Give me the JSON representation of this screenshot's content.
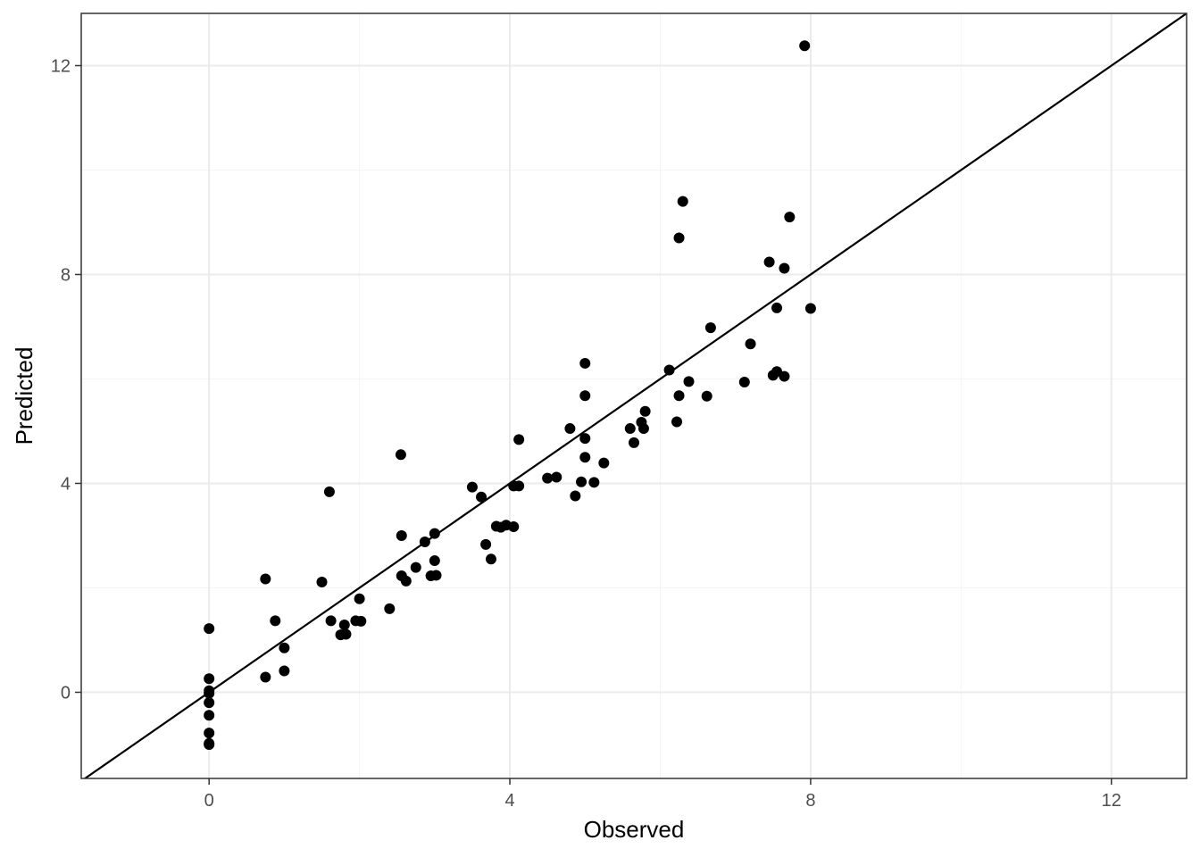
{
  "chart_data": {
    "type": "scatter",
    "xlabel": "Observed",
    "ylabel": "Predicted",
    "xlim": [
      -1.7,
      13.0
    ],
    "ylim": [
      -1.65,
      13.0
    ],
    "x_ticks": [
      0,
      4,
      8,
      12
    ],
    "y_ticks": [
      0,
      4,
      8,
      12
    ],
    "x_minor": [
      2,
      6,
      10
    ],
    "y_minor": [
      2,
      6,
      10
    ],
    "grid": true,
    "reference_line": {
      "slope": 1,
      "intercept": 0
    },
    "point_color": "#000000",
    "points": [
      {
        "x": 0,
        "y": 1.22
      },
      {
        "x": 0,
        "y": 0.26
      },
      {
        "x": 0,
        "y": 0.03
      },
      {
        "x": 0,
        "y": -0.02
      },
      {
        "x": 0,
        "y": -0.2
      },
      {
        "x": 0,
        "y": -0.44
      },
      {
        "x": 0,
        "y": -0.78
      },
      {
        "x": 0,
        "y": -0.98
      },
      {
        "x": 0,
        "y": -1.0
      },
      {
        "x": 0.75,
        "y": 2.17
      },
      {
        "x": 0.75,
        "y": 0.29
      },
      {
        "x": 0.88,
        "y": 1.37
      },
      {
        "x": 1.0,
        "y": 0.85
      },
      {
        "x": 1.0,
        "y": 0.41
      },
      {
        "x": 1.5,
        "y": 2.11
      },
      {
        "x": 1.6,
        "y": 3.84
      },
      {
        "x": 1.62,
        "y": 1.37
      },
      {
        "x": 1.75,
        "y": 1.1
      },
      {
        "x": 1.8,
        "y": 1.29
      },
      {
        "x": 1.82,
        "y": 1.11
      },
      {
        "x": 1.95,
        "y": 1.37
      },
      {
        "x": 2.0,
        "y": 1.79
      },
      {
        "x": 2.02,
        "y": 1.36
      },
      {
        "x": 2.4,
        "y": 1.6
      },
      {
        "x": 2.55,
        "y": 4.55
      },
      {
        "x": 2.56,
        "y": 3.0
      },
      {
        "x": 2.56,
        "y": 2.23
      },
      {
        "x": 2.62,
        "y": 2.13
      },
      {
        "x": 2.75,
        "y": 2.39
      },
      {
        "x": 2.87,
        "y": 2.88
      },
      {
        "x": 2.95,
        "y": 2.23
      },
      {
        "x": 3.0,
        "y": 3.04
      },
      {
        "x": 3.0,
        "y": 2.52
      },
      {
        "x": 3.02,
        "y": 2.24
      },
      {
        "x": 3.5,
        "y": 3.93
      },
      {
        "x": 3.62,
        "y": 3.74
      },
      {
        "x": 3.68,
        "y": 2.83
      },
      {
        "x": 3.75,
        "y": 2.55
      },
      {
        "x": 3.82,
        "y": 3.18
      },
      {
        "x": 3.88,
        "y": 3.16
      },
      {
        "x": 3.95,
        "y": 3.2
      },
      {
        "x": 4.05,
        "y": 3.17
      },
      {
        "x": 4.05,
        "y": 3.95
      },
      {
        "x": 4.12,
        "y": 3.95
      },
      {
        "x": 4.12,
        "y": 4.84
      },
      {
        "x": 4.5,
        "y": 4.1
      },
      {
        "x": 4.62,
        "y": 4.12
      },
      {
        "x": 4.8,
        "y": 5.05
      },
      {
        "x": 4.87,
        "y": 3.76
      },
      {
        "x": 4.95,
        "y": 4.03
      },
      {
        "x": 5.0,
        "y": 6.3
      },
      {
        "x": 5.0,
        "y": 5.68
      },
      {
        "x": 5.0,
        "y": 4.86
      },
      {
        "x": 5.0,
        "y": 4.5
      },
      {
        "x": 5.12,
        "y": 4.02
      },
      {
        "x": 5.25,
        "y": 4.39
      },
      {
        "x": 5.6,
        "y": 5.05
      },
      {
        "x": 5.65,
        "y": 4.78
      },
      {
        "x": 5.75,
        "y": 5.17
      },
      {
        "x": 5.78,
        "y": 5.05
      },
      {
        "x": 5.8,
        "y": 5.38
      },
      {
        "x": 6.12,
        "y": 6.17
      },
      {
        "x": 6.22,
        "y": 5.18
      },
      {
        "x": 6.25,
        "y": 8.7
      },
      {
        "x": 6.25,
        "y": 5.68
      },
      {
        "x": 6.3,
        "y": 9.4
      },
      {
        "x": 6.38,
        "y": 5.95
      },
      {
        "x": 6.62,
        "y": 5.67
      },
      {
        "x": 6.67,
        "y": 6.98
      },
      {
        "x": 7.12,
        "y": 5.94
      },
      {
        "x": 7.2,
        "y": 6.67
      },
      {
        "x": 7.45,
        "y": 8.24
      },
      {
        "x": 7.5,
        "y": 6.07
      },
      {
        "x": 7.55,
        "y": 6.14
      },
      {
        "x": 7.55,
        "y": 7.36
      },
      {
        "x": 7.65,
        "y": 8.12
      },
      {
        "x": 7.65,
        "y": 6.05
      },
      {
        "x": 7.72,
        "y": 9.1
      },
      {
        "x": 7.92,
        "y": 12.38
      },
      {
        "x": 8.0,
        "y": 7.35
      }
    ]
  }
}
